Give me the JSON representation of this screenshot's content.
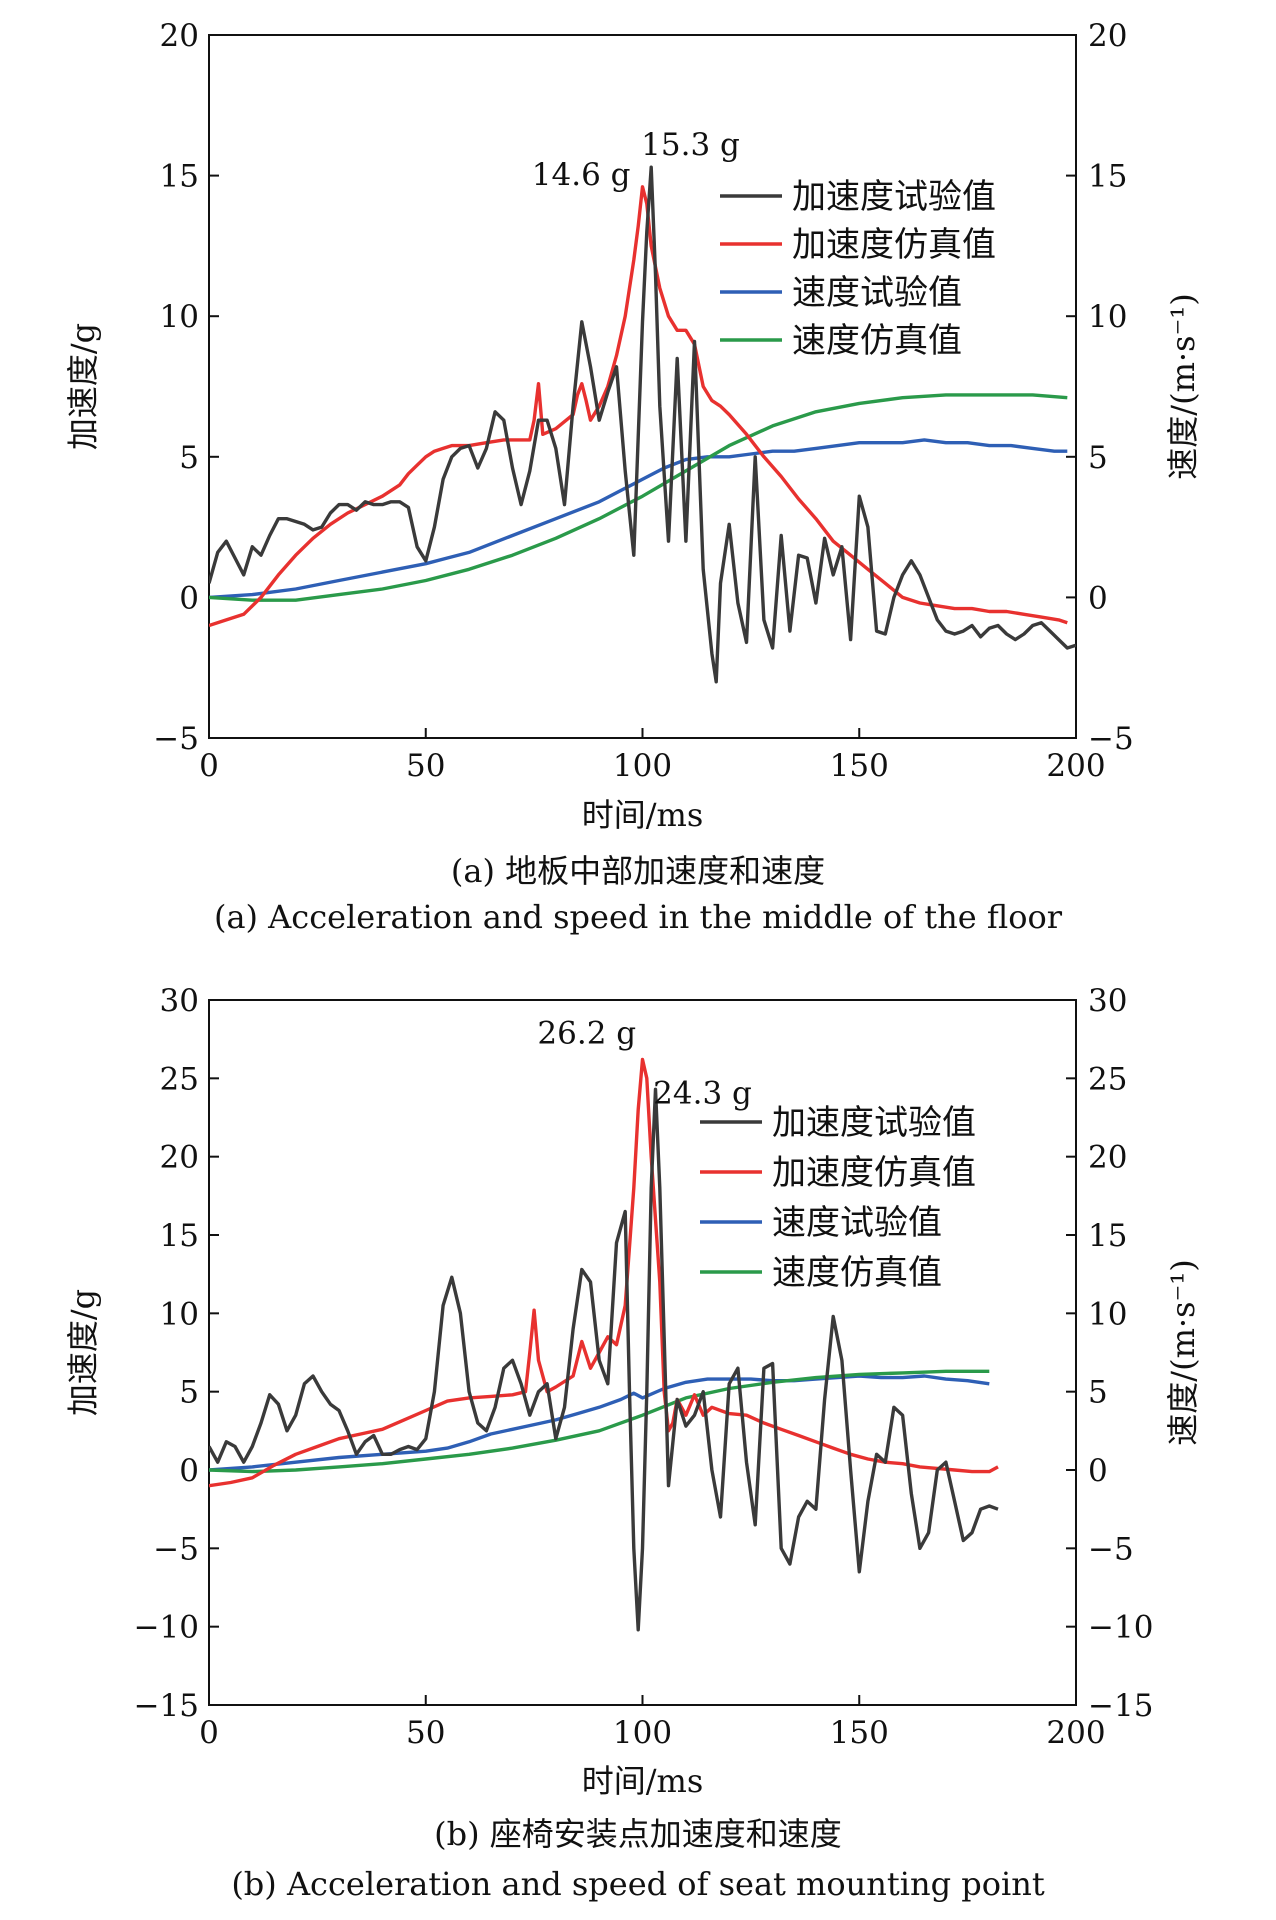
{
  "chart_data": [
    {
      "type": "line",
      "xlabel": "时间/ms",
      "ylabel_left": "加速度/g",
      "ylabel_right": "速度/(m·s⁻¹)",
      "xlim": [
        0,
        200
      ],
      "ylim_left": [
        -5,
        20
      ],
      "ylim_right": [
        -5,
        20
      ],
      "x_ticks": [
        "0",
        "50",
        "100",
        "150",
        "200"
      ],
      "y_ticks_left": [
        "−5",
        "0",
        "5",
        "10",
        "15",
        "20"
      ],
      "y_ticks_right": [
        "−5",
        "0",
        "5",
        "10",
        "15",
        "20"
      ],
      "y_tick_values": [
        -5,
        0,
        5,
        10,
        15,
        20
      ],
      "x_tick_values": [
        0,
        50,
        100,
        150,
        200
      ],
      "legend_position": "top-right",
      "caption_cn": "(a) 地板中部加速度和速度",
      "caption_en": "(a) Acceleration and speed in the middle of the floor",
      "annotations": [
        {
          "text": "15.3 g",
          "x": 102,
          "y": 15.3
        },
        {
          "text": "14.6 g",
          "x": 100,
          "y": 14.6
        }
      ],
      "series": [
        {
          "name": "加速度试验值",
          "color": "#3a3a3a",
          "axis": "left",
          "x": [
            0,
            2,
            4,
            6,
            8,
            10,
            12,
            14,
            16,
            18,
            20,
            22,
            24,
            26,
            28,
            30,
            32,
            34,
            36,
            38,
            40,
            42,
            44,
            46,
            48,
            50,
            52,
            54,
            56,
            58,
            60,
            62,
            64,
            66,
            68,
            70,
            72,
            74,
            76,
            78,
            80,
            82,
            84,
            86,
            88,
            90,
            92,
            94,
            96,
            98,
            100,
            101,
            102,
            103,
            104,
            106,
            108,
            110,
            112,
            114,
            116,
            117,
            118,
            120,
            122,
            124,
            126,
            128,
            130,
            132,
            134,
            136,
            138,
            140,
            142,
            144,
            146,
            148,
            150,
            152,
            154,
            156,
            158,
            160,
            162,
            164,
            166,
            168,
            170,
            172,
            174,
            176,
            178,
            180,
            182,
            184,
            186,
            188,
            190,
            192,
            194,
            196,
            198,
            200
          ],
          "y": [
            0.5,
            1.6,
            2.0,
            1.4,
            0.8,
            1.8,
            1.5,
            2.2,
            2.8,
            2.8,
            2.7,
            2.6,
            2.4,
            2.5,
            3.0,
            3.3,
            3.3,
            3.1,
            3.4,
            3.3,
            3.3,
            3.4,
            3.4,
            3.2,
            1.8,
            1.3,
            2.5,
            4.2,
            5.0,
            5.3,
            5.4,
            4.6,
            5.3,
            6.6,
            6.3,
            4.6,
            3.3,
            4.5,
            6.3,
            6.3,
            5.3,
            3.3,
            6.8,
            9.8,
            8.2,
            6.3,
            7.3,
            8.2,
            4.5,
            1.5,
            9.8,
            13.0,
            15.3,
            11.5,
            6.8,
            2.0,
            8.5,
            2.0,
            9.1,
            1.0,
            -2.0,
            -3.0,
            0.5,
            2.6,
            -0.2,
            -1.6,
            5.0,
            -0.8,
            -1.8,
            2.2,
            -1.2,
            1.5,
            1.4,
            -0.2,
            2.1,
            0.8,
            1.8,
            -1.5,
            3.6,
            2.5,
            -1.2,
            -1.3,
            0.0,
            0.8,
            1.3,
            0.8,
            0.0,
            -0.8,
            -1.2,
            -1.3,
            -1.2,
            -1.0,
            -1.4,
            -1.1,
            -1.0,
            -1.3,
            -1.5,
            -1.3,
            -1.0,
            -0.9,
            -1.2,
            -1.5,
            -1.8,
            -1.7
          ]
        },
        {
          "name": "加速度仿真值",
          "color": "#e8312f",
          "axis": "left",
          "x": [
            0,
            4,
            8,
            12,
            16,
            20,
            24,
            28,
            32,
            36,
            40,
            44,
            46,
            48,
            50,
            52,
            54,
            56,
            60,
            64,
            68,
            72,
            74,
            75,
            76,
            77,
            80,
            84,
            85,
            86,
            87,
            88,
            90,
            92,
            94,
            96,
            98,
            99,
            100,
            101,
            102,
            104,
            106,
            108,
            110,
            112,
            114,
            116,
            118,
            120,
            124,
            128,
            132,
            136,
            140,
            144,
            148,
            152,
            156,
            160,
            164,
            168,
            172,
            176,
            180,
            184,
            188,
            192,
            196,
            198
          ],
          "y": [
            -1.0,
            -0.8,
            -0.6,
            0.0,
            0.8,
            1.5,
            2.1,
            2.6,
            3.0,
            3.3,
            3.6,
            4.0,
            4.4,
            4.7,
            5.0,
            5.2,
            5.3,
            5.4,
            5.4,
            5.5,
            5.6,
            5.6,
            5.6,
            6.3,
            7.6,
            5.8,
            6.0,
            6.5,
            7.2,
            7.6,
            7.0,
            6.3,
            6.8,
            7.5,
            8.6,
            10.0,
            12.0,
            13.2,
            14.6,
            14.0,
            12.5,
            11.0,
            10.0,
            9.5,
            9.5,
            9.0,
            7.5,
            7.0,
            6.8,
            6.5,
            5.8,
            5.0,
            4.3,
            3.5,
            2.8,
            2.0,
            1.5,
            1.0,
            0.5,
            0.0,
            -0.2,
            -0.3,
            -0.4,
            -0.4,
            -0.5,
            -0.5,
            -0.6,
            -0.7,
            -0.8,
            -0.9
          ]
        },
        {
          "name": "速度试验值",
          "color": "#2e5fb5",
          "axis": "right",
          "x": [
            0,
            10,
            20,
            30,
            40,
            50,
            55,
            60,
            70,
            80,
            90,
            95,
            100,
            105,
            110,
            115,
            120,
            125,
            130,
            135,
            140,
            145,
            150,
            155,
            160,
            165,
            170,
            175,
            180,
            185,
            190,
            195,
            198
          ],
          "y": [
            0,
            0.1,
            0.3,
            0.6,
            0.9,
            1.2,
            1.4,
            1.6,
            2.2,
            2.8,
            3.4,
            3.8,
            4.2,
            4.6,
            4.9,
            5.0,
            5.0,
            5.1,
            5.2,
            5.2,
            5.3,
            5.4,
            5.5,
            5.5,
            5.5,
            5.6,
            5.5,
            5.5,
            5.4,
            5.4,
            5.3,
            5.2,
            5.2
          ]
        },
        {
          "name": "速度仿真值",
          "color": "#2a9a4a",
          "axis": "right",
          "x": [
            0,
            10,
            20,
            30,
            40,
            50,
            60,
            70,
            80,
            90,
            100,
            110,
            120,
            130,
            140,
            150,
            160,
            170,
            180,
            190,
            198
          ],
          "y": [
            0,
            -0.1,
            -0.1,
            0.1,
            0.3,
            0.6,
            1.0,
            1.5,
            2.1,
            2.8,
            3.6,
            4.5,
            5.4,
            6.1,
            6.6,
            6.9,
            7.1,
            7.2,
            7.2,
            7.2,
            7.1
          ]
        }
      ]
    },
    {
      "type": "line",
      "xlabel": "时间/ms",
      "ylabel_left": "加速度/g",
      "ylabel_right": "速度/(m·s⁻¹)",
      "xlim": [
        0,
        200
      ],
      "ylim_left": [
        -15,
        30
      ],
      "ylim_right": [
        -15,
        30
      ],
      "x_ticks": [
        "0",
        "50",
        "100",
        "150",
        "200"
      ],
      "y_ticks_left": [
        "−15",
        "−10",
        "−5",
        "0",
        "5",
        "10",
        "15",
        "20",
        "25",
        "30"
      ],
      "y_ticks_right": [
        "−15",
        "−10",
        "−5",
        "0",
        "5",
        "10",
        "15",
        "20",
        "25",
        "30"
      ],
      "y_tick_values": [
        -15,
        -10,
        -5,
        0,
        5,
        10,
        15,
        20,
        25,
        30
      ],
      "x_tick_values": [
        0,
        50,
        100,
        150,
        200
      ],
      "legend_position": "top-right",
      "caption_cn": "(b) 座椅安装点加速度和速度",
      "caption_en": "(b) Acceleration and speed of seat mounting point",
      "annotations": [
        {
          "text": "26.2 g",
          "x": 99,
          "y": 26.2
        },
        {
          "text": "24.3 g",
          "x": 102,
          "y": 24.3
        }
      ],
      "series": [
        {
          "name": "加速度试验值",
          "color": "#3a3a3a",
          "axis": "left",
          "x": [
            0,
            2,
            4,
            6,
            8,
            10,
            12,
            14,
            16,
            18,
            20,
            22,
            24,
            26,
            28,
            30,
            32,
            34,
            36,
            38,
            40,
            42,
            44,
            46,
            48,
            50,
            52,
            54,
            56,
            58,
            60,
            62,
            64,
            66,
            68,
            70,
            72,
            74,
            76,
            78,
            80,
            82,
            84,
            86,
            88,
            90,
            92,
            94,
            96,
            97,
            98,
            99,
            100,
            101,
            102,
            103,
            104,
            106,
            108,
            110,
            112,
            114,
            116,
            118,
            120,
            122,
            124,
            126,
            128,
            130,
            132,
            134,
            136,
            138,
            140,
            142,
            144,
            146,
            148,
            150,
            152,
            154,
            156,
            158,
            160,
            162,
            164,
            166,
            168,
            170,
            172,
            174,
            176,
            178,
            180,
            182
          ],
          "y": [
            1.5,
            0.5,
            1.8,
            1.5,
            0.5,
            1.5,
            3.0,
            4.8,
            4.2,
            2.5,
            3.5,
            5.5,
            6.0,
            5.0,
            4.2,
            3.8,
            2.5,
            1.0,
            1.8,
            2.2,
            1.0,
            1.0,
            1.3,
            1.5,
            1.3,
            2.0,
            5.0,
            10.5,
            12.3,
            10.0,
            5.0,
            3.0,
            2.5,
            4.0,
            6.5,
            7.0,
            5.5,
            3.5,
            5.0,
            5.5,
            2.0,
            4.0,
            9.0,
            12.8,
            12.0,
            7.0,
            5.5,
            14.5,
            16.5,
            5.0,
            -5.0,
            -10.2,
            -5.0,
            5.0,
            18.0,
            24.3,
            18.0,
            -1.0,
            4.5,
            2.8,
            3.5,
            5.0,
            0.0,
            -3.0,
            5.5,
            6.5,
            0.5,
            -3.5,
            6.5,
            6.8,
            -5.0,
            -6.0,
            -3.0,
            -2.0,
            -2.5,
            4.5,
            9.8,
            7.0,
            0.0,
            -6.5,
            -2.0,
            1.0,
            0.5,
            4.0,
            3.5,
            -1.5,
            -5.0,
            -4.0,
            0.0,
            0.5,
            -2.0,
            -4.5,
            -4.0,
            -2.5,
            -2.3,
            -2.5
          ]
        },
        {
          "name": "加速度仿真值",
          "color": "#e8312f",
          "axis": "left",
          "x": [
            0,
            5,
            10,
            15,
            20,
            25,
            30,
            35,
            40,
            45,
            50,
            55,
            60,
            65,
            70,
            73,
            74,
            75,
            76,
            78,
            80,
            84,
            86,
            88,
            90,
            92,
            94,
            96,
            98,
            99,
            100,
            101,
            102,
            104,
            105,
            106,
            107,
            108,
            110,
            112,
            114,
            116,
            118,
            120,
            124,
            128,
            132,
            136,
            140,
            144,
            148,
            152,
            156,
            160,
            164,
            168,
            172,
            176,
            180,
            182
          ],
          "y": [
            -1.0,
            -0.8,
            -0.5,
            0.3,
            1.0,
            1.5,
            2.0,
            2.3,
            2.6,
            3.2,
            3.8,
            4.4,
            4.6,
            4.7,
            4.8,
            5.0,
            7.5,
            10.2,
            7.0,
            5.0,
            5.3,
            6.0,
            8.2,
            6.5,
            7.5,
            8.5,
            8.0,
            10.5,
            18.0,
            23.0,
            26.2,
            25.0,
            20.0,
            12.0,
            5.0,
            2.5,
            3.0,
            4.5,
            3.5,
            4.8,
            3.5,
            4.0,
            3.8,
            3.6,
            3.5,
            3.0,
            2.6,
            2.2,
            1.8,
            1.4,
            1.0,
            0.7,
            0.5,
            0.4,
            0.2,
            0.1,
            0.0,
            -0.1,
            -0.1,
            0.2
          ]
        },
        {
          "name": "速度试验值",
          "color": "#2e5fb5",
          "axis": "right",
          "x": [
            0,
            10,
            20,
            30,
            40,
            50,
            55,
            60,
            65,
            70,
            75,
            80,
            85,
            90,
            95,
            98,
            100,
            105,
            110,
            115,
            120,
            125,
            130,
            135,
            140,
            145,
            150,
            155,
            160,
            165,
            170,
            175,
            180
          ],
          "y": [
            0,
            0.2,
            0.5,
            0.8,
            1.0,
            1.2,
            1.4,
            1.8,
            2.3,
            2.6,
            2.9,
            3.2,
            3.6,
            4.0,
            4.5,
            4.9,
            4.6,
            5.2,
            5.6,
            5.8,
            5.8,
            5.8,
            5.7,
            5.7,
            5.8,
            5.9,
            6.0,
            5.9,
            5.9,
            6.0,
            5.8,
            5.7,
            5.5
          ]
        },
        {
          "name": "速度仿真值",
          "color": "#2a9a4a",
          "axis": "right",
          "x": [
            0,
            10,
            20,
            30,
            40,
            50,
            60,
            70,
            80,
            90,
            100,
            110,
            120,
            130,
            140,
            150,
            160,
            170,
            180
          ],
          "y": [
            0,
            -0.1,
            0.0,
            0.2,
            0.4,
            0.7,
            1.0,
            1.4,
            1.9,
            2.5,
            3.5,
            4.6,
            5.2,
            5.6,
            5.9,
            6.1,
            6.2,
            6.3,
            6.3
          ]
        }
      ]
    }
  ]
}
